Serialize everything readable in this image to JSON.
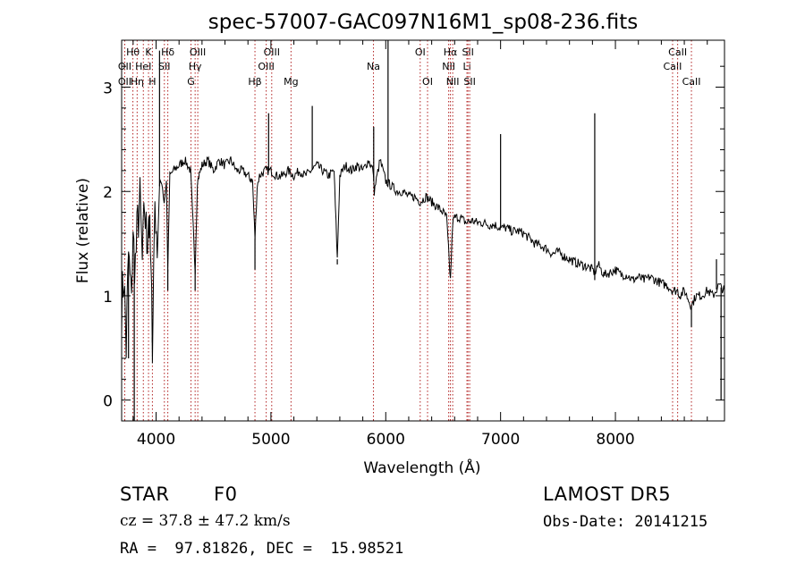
{
  "chart_data": {
    "type": "line",
    "title": "spec-57007-GAC097N16M1_sp08-236.fits",
    "xlabel": "Wavelength (Å)",
    "ylabel": "Flux (relative)",
    "xlim": [
      3700,
      8950
    ],
    "ylim": [
      -0.2,
      3.45
    ],
    "xticks": [
      4000,
      5000,
      6000,
      7000,
      8000
    ],
    "yticks": [
      0,
      1,
      2,
      3
    ],
    "grid": false,
    "line_color": "#000000",
    "marker_color": "#b22222",
    "series": [
      {
        "x": [
          3700,
          3720,
          3740,
          3760,
          3780,
          3800,
          3820,
          3840,
          3860,
          3880,
          3900,
          3920,
          3935,
          3950,
          3968,
          3990,
          4010,
          4030,
          4050,
          4070,
          4090,
          4102,
          4120,
          4150,
          4200,
          4250,
          4300,
          4340,
          4360,
          4400,
          4450,
          4500,
          4550,
          4600,
          4650,
          4700,
          4750,
          4800,
          4840,
          4861,
          4880,
          4900,
          4950,
          5000,
          5050,
          5100,
          5150,
          5200,
          5250,
          5300,
          5350,
          5400,
          5450,
          5500,
          5550,
          5578,
          5600,
          5650,
          5700,
          5750,
          5800,
          5850,
          5890,
          5900,
          5950,
          6000,
          6050,
          6100,
          6150,
          6200,
          6250,
          6300,
          6350,
          6400,
          6450,
          6500,
          6530,
          6563,
          6583,
          6600,
          6650,
          6700,
          6750,
          6800,
          6850,
          6900,
          6950,
          7000,
          7050,
          7100,
          7150,
          7200,
          7250,
          7300,
          7350,
          7400,
          7450,
          7500,
          7550,
          7600,
          7650,
          7700,
          7750,
          7800,
          7820,
          7850,
          7900,
          7950,
          8000,
          8050,
          8100,
          8150,
          8200,
          8250,
          8300,
          8350,
          8400,
          8450,
          8500,
          8542,
          8560,
          8600,
          8662,
          8700,
          8750,
          8800,
          8850,
          8900,
          8950
        ],
        "y": [
          0.9,
          1.2,
          0.5,
          1.4,
          1.0,
          1.5,
          1.3,
          1.7,
          1.9,
          1.3,
          1.85,
          1.5,
          1.8,
          1.4,
          0.6,
          1.95,
          1.4,
          2.05,
          2.1,
          1.9,
          2.1,
          1.25,
          2.15,
          2.2,
          2.25,
          2.3,
          2.2,
          1.25,
          2.1,
          2.25,
          2.3,
          2.2,
          2.3,
          2.25,
          2.3,
          2.2,
          2.2,
          2.15,
          2.1,
          1.55,
          2.05,
          2.15,
          2.2,
          2.2,
          2.15,
          2.15,
          2.2,
          2.15,
          2.2,
          2.15,
          2.2,
          2.25,
          2.2,
          2.15,
          2.2,
          1.35,
          2.15,
          2.25,
          2.2,
          2.25,
          2.2,
          2.3,
          2.2,
          2.0,
          2.3,
          2.1,
          2.05,
          2.0,
          2.0,
          1.95,
          1.95,
          1.9,
          1.95,
          1.9,
          1.85,
          1.8,
          1.75,
          1.15,
          1.7,
          1.75,
          1.75,
          1.7,
          1.72,
          1.7,
          1.7,
          1.68,
          1.68,
          1.65,
          1.65,
          1.62,
          1.62,
          1.6,
          1.55,
          1.5,
          1.48,
          1.45,
          1.4,
          1.42,
          1.38,
          1.35,
          1.32,
          1.3,
          1.28,
          1.25,
          1.22,
          1.3,
          1.2,
          1.22,
          1.25,
          1.2,
          1.2,
          1.15,
          1.18,
          1.15,
          1.18,
          1.15,
          1.12,
          1.1,
          1.05,
          1.05,
          1.0,
          1.05,
          0.9,
          1.0,
          1.0,
          1.05,
          1.0,
          1.1,
          1.05
        ]
      }
    ],
    "emission_spikes": [
      {
        "x": 4030,
        "y": 3.35
      },
      {
        "x": 4980,
        "y": 2.75
      },
      {
        "x": 5360,
        "y": 2.82
      },
      {
        "x": 5895,
        "y": 2.62
      },
      {
        "x": 6020,
        "y": 3.45
      },
      {
        "x": 7000,
        "y": 2.55
      },
      {
        "x": 7820,
        "y": 2.75
      },
      {
        "x": 8880,
        "y": 1.35
      }
    ],
    "absorption_spikes": [
      {
        "x": 3760,
        "y": 0.4
      },
      {
        "x": 3810,
        "y": -0.25
      },
      {
        "x": 3968,
        "y": 0.55
      },
      {
        "x": 4102,
        "y": 1.05
      },
      {
        "x": 4340,
        "y": 1.05
      },
      {
        "x": 4861,
        "y": 1.25
      },
      {
        "x": 5578,
        "y": 1.3
      },
      {
        "x": 6563,
        "y": 1.15
      },
      {
        "x": 7820,
        "y": 1.15
      },
      {
        "x": 8662,
        "y": 0.7
      },
      {
        "x": 8920,
        "y": 0.0
      }
    ],
    "line_markers": [
      {
        "x": 3727,
        "label": "OII",
        "row": 1
      },
      {
        "x": 3727,
        "label": "OII",
        "row": 2
      },
      {
        "x": 3798,
        "label": "Hθ",
        "row": 0
      },
      {
        "x": 3835,
        "label": "Hη",
        "row": 2
      },
      {
        "x": 3889,
        "label": "HeI",
        "row": 1
      },
      {
        "x": 3934,
        "label": "K",
        "row": 0
      },
      {
        "x": 3968,
        "label": "H",
        "row": 2
      },
      {
        "x": 4072,
        "label": "SII",
        "row": 1
      },
      {
        "x": 4102,
        "label": "Hδ",
        "row": 0
      },
      {
        "x": 4304,
        "label": "G",
        "row": 2
      },
      {
        "x": 4340,
        "label": "Hγ",
        "row": 1
      },
      {
        "x": 4363,
        "label": "OIII",
        "row": 0
      },
      {
        "x": 4861,
        "label": "Hβ",
        "row": 2
      },
      {
        "x": 4959,
        "label": "OIII",
        "row": 1
      },
      {
        "x": 5007,
        "label": "OIII",
        "row": 0
      },
      {
        "x": 5175,
        "label": "Mg",
        "row": 2
      },
      {
        "x": 5893,
        "label": "Na",
        "row": 1
      },
      {
        "x": 6300,
        "label": "OI",
        "row": 0
      },
      {
        "x": 6364,
        "label": "OI",
        "row": 2
      },
      {
        "x": 6548,
        "label": "NII",
        "row": 1
      },
      {
        "x": 6563,
        "label": "Hα",
        "row": 0
      },
      {
        "x": 6583,
        "label": "NII",
        "row": 2
      },
      {
        "x": 6707,
        "label": "Li",
        "row": 1
      },
      {
        "x": 6716,
        "label": "SII",
        "row": 0
      },
      {
        "x": 6731,
        "label": "SII",
        "row": 2
      },
      {
        "x": 8498,
        "label": "CaII",
        "row": 1
      },
      {
        "x": 8542,
        "label": "CaII",
        "row": 0
      },
      {
        "x": 8662,
        "label": "CaII",
        "row": 2
      }
    ]
  },
  "info": {
    "class_label": "STAR",
    "subclass": "F0",
    "survey": "LAMOST DR5",
    "cz": "cz = 37.8 ± 47.2 km/s",
    "obs_date": "Obs-Date: 20141215",
    "coords": "RA =  97.81826, DEC =  15.98521"
  }
}
